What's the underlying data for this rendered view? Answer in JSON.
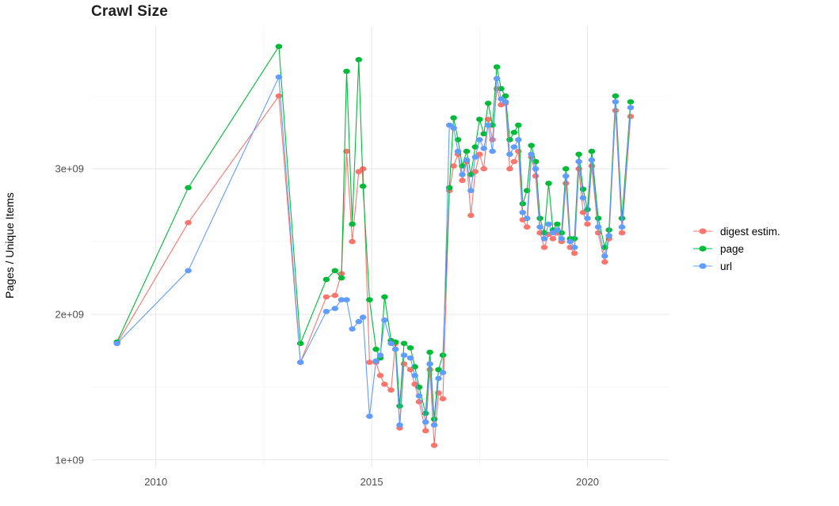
{
  "chart_data": {
    "type": "line",
    "title": "Crawl Size",
    "xlabel": "",
    "ylabel": "Pages / Unique Items",
    "legend_position": "right",
    "grid": true,
    "background": "#ffffff",
    "grid_color": "#e7e7e7",
    "grid_minor_color": "#f3f3f3",
    "xlim": [
      2008.5,
      2021.9
    ],
    "ylim": [
      950000000.0,
      3980000000.0
    ],
    "x_ticks": [
      2010,
      2015,
      2020
    ],
    "x_tick_labels": [
      "2010",
      "2015",
      "2020"
    ],
    "x_minor": [
      2012.5,
      2017.5
    ],
    "y_ticks": [
      1000000000.0,
      2000000000.0,
      3000000000.0
    ],
    "y_tick_labels": [
      "1e+09",
      "2e+09",
      "3e+09"
    ],
    "y_minor": [
      1500000000.0,
      2500000000.0,
      3500000000.0
    ],
    "x": [
      2009.1,
      2010.75,
      2012.85,
      2013.35,
      2013.95,
      2014.15,
      2014.3,
      2014.42,
      2014.55,
      2014.7,
      2014.8,
      2014.95,
      2015.1,
      2015.2,
      2015.3,
      2015.45,
      2015.55,
      2015.65,
      2015.75,
      2015.9,
      2016.0,
      2016.1,
      2016.25,
      2016.35,
      2016.45,
      2016.55,
      2016.65,
      2016.8,
      2016.9,
      2017.0,
      2017.1,
      2017.2,
      2017.3,
      2017.4,
      2017.5,
      2017.6,
      2017.7,
      2017.8,
      2017.9,
      2018.0,
      2018.1,
      2018.2,
      2018.3,
      2018.4,
      2018.5,
      2018.6,
      2018.7,
      2018.8,
      2018.9,
      2019.0,
      2019.1,
      2019.2,
      2019.3,
      2019.4,
      2019.5,
      2019.6,
      2019.7,
      2019.8,
      2019.9,
      2020.0,
      2020.1,
      2020.25,
      2020.4,
      2020.5,
      2020.65,
      2020.8,
      2021.0
    ],
    "series": [
      {
        "name": "digest estim.",
        "color": "#F8766D",
        "values": [
          1800000000.0,
          2630000000.0,
          3500000000.0,
          1670000000.0,
          2120000000.0,
          2130000000.0,
          2280000000.0,
          3120000000.0,
          2500000000.0,
          2980000000.0,
          3000000000.0,
          1670000000.0,
          1670000000.0,
          1580000000.0,
          1520000000.0,
          1480000000.0,
          1800000000.0,
          1220000000.0,
          1660000000.0,
          1620000000.0,
          1520000000.0,
          1400000000.0,
          1200000000.0,
          1620000000.0,
          1100000000.0,
          1460000000.0,
          1420000000.0,
          2850000000.0,
          3020000000.0,
          3100000000.0,
          2920000000.0,
          3050000000.0,
          2680000000.0,
          2980000000.0,
          3100000000.0,
          3000000000.0,
          3340000000.0,
          3200000000.0,
          3550000000.0,
          3440000000.0,
          3450000000.0,
          3000000000.0,
          3050000000.0,
          3120000000.0,
          2650000000.0,
          2600000000.0,
          3080000000.0,
          2950000000.0,
          2560000000.0,
          2460000000.0,
          2550000000.0,
          2520000000.0,
          2560000000.0,
          2500000000.0,
          2900000000.0,
          2460000000.0,
          2420000000.0,
          3000000000.0,
          2700000000.0,
          2620000000.0,
          3020000000.0,
          2560000000.0,
          2360000000.0,
          2520000000.0,
          3400000000.0,
          2560000000.0,
          3360000000.0
        ]
      },
      {
        "name": "page",
        "color": "#00BA38",
        "values": [
          1810000000.0,
          2870000000.0,
          3840000000.0,
          1800000000.0,
          2240000000.0,
          2300000000.0,
          2250000000.0,
          3670000000.0,
          2620000000.0,
          3750000000.0,
          2880000000.0,
          2100000000.0,
          1760000000.0,
          1700000000.0,
          2120000000.0,
          1820000000.0,
          1810000000.0,
          1370000000.0,
          1800000000.0,
          1770000000.0,
          1640000000.0,
          1500000000.0,
          1320000000.0,
          1740000000.0,
          1280000000.0,
          1620000000.0,
          1720000000.0,
          2870000000.0,
          3350000000.0,
          3200000000.0,
          3020000000.0,
          3120000000.0,
          2960000000.0,
          3150000000.0,
          3340000000.0,
          3240000000.0,
          3450000000.0,
          3300000000.0,
          3700000000.0,
          3550000000.0,
          3500000000.0,
          3200000000.0,
          3250000000.0,
          3300000000.0,
          2760000000.0,
          2850000000.0,
          3160000000.0,
          3050000000.0,
          2660000000.0,
          2560000000.0,
          2900000000.0,
          2580000000.0,
          2620000000.0,
          2560000000.0,
          3000000000.0,
          2520000000.0,
          2520000000.0,
          3100000000.0,
          2860000000.0,
          2720000000.0,
          3120000000.0,
          2660000000.0,
          2460000000.0,
          2580000000.0,
          3500000000.0,
          2660000000.0,
          3460000000.0
        ]
      },
      {
        "name": "url",
        "color": "#619CFF",
        "values": [
          1800000000.0,
          2300000000.0,
          3630000000.0,
          1670000000.0,
          2020000000.0,
          2040000000.0,
          2100000000.0,
          2100000000.0,
          1900000000.0,
          1950000000.0,
          1980000000.0,
          1300000000.0,
          1680000000.0,
          1720000000.0,
          1960000000.0,
          1800000000.0,
          1760000000.0,
          1240000000.0,
          1720000000.0,
          1700000000.0,
          1580000000.0,
          1440000000.0,
          1260000000.0,
          1660000000.0,
          1240000000.0,
          1560000000.0,
          1600000000.0,
          3300000000.0,
          3280000000.0,
          3120000000.0,
          2960000000.0,
          3060000000.0,
          2850000000.0,
          3080000000.0,
          3200000000.0,
          3140000000.0,
          3300000000.0,
          3120000000.0,
          3620000000.0,
          3480000000.0,
          3460000000.0,
          3100000000.0,
          3150000000.0,
          3200000000.0,
          2700000000.0,
          2660000000.0,
          3100000000.0,
          3000000000.0,
          2600000000.0,
          2520000000.0,
          2620000000.0,
          2560000000.0,
          2580000000.0,
          2520000000.0,
          2950000000.0,
          2500000000.0,
          2460000000.0,
          3050000000.0,
          2800000000.0,
          2660000000.0,
          3060000000.0,
          2600000000.0,
          2400000000.0,
          2540000000.0,
          3460000000.0,
          2600000000.0,
          3420000000.0
        ]
      }
    ]
  }
}
